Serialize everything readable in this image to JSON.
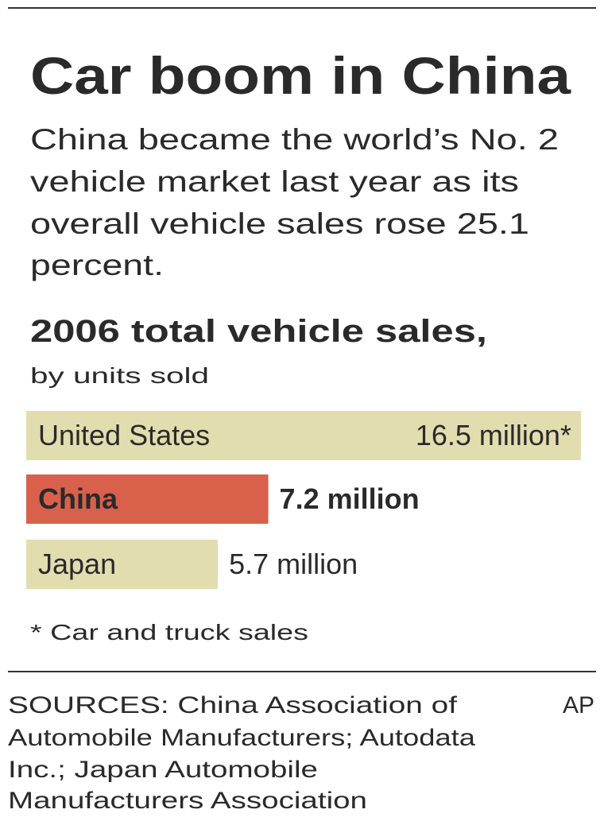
{
  "title": "Car boom in China",
  "subtitle": [
    "China became the world’s No. 2",
    "vehicle market last year as its",
    "overall vehicle sales rose 25.1",
    "percent."
  ],
  "chart_data": {
    "type": "bar",
    "orientation": "horizontal",
    "title": "2006 total vehicle sales,",
    "subtitle": "by units sold",
    "categories": [
      "United States",
      "China",
      "Japan"
    ],
    "values": [
      16.5,
      7.2,
      5.7
    ],
    "value_labels": [
      "16.5 million*",
      "7.2 million",
      "5.7 million"
    ],
    "colors": [
      "#e2ddaf",
      "#d9604b",
      "#e2ddaf"
    ],
    "note": "* Car and truck sales"
  },
  "sources": [
    "SOURCES: China Association of",
    "Automobile Manufacturers; Autodata",
    "Inc.; Japan Automobile",
    "Manufacturers Association"
  ],
  "credit": "AP"
}
